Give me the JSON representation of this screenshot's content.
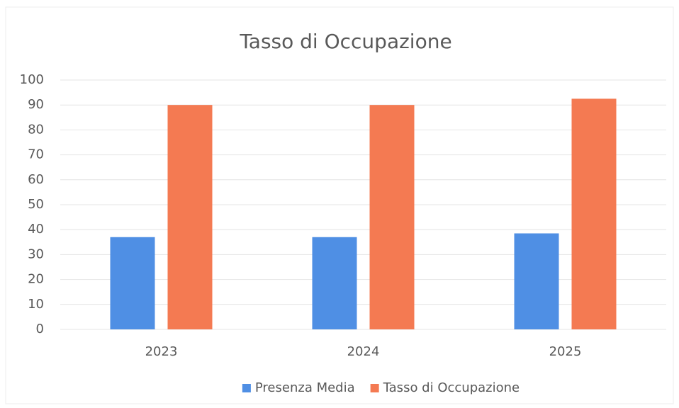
{
  "chart_data": {
    "type": "bar",
    "title": "Tasso di Occupazione",
    "categories": [
      "2023",
      "2024",
      "2025"
    ],
    "series": [
      {
        "name": "Presenza Media",
        "color": "#4f8fe4",
        "values": [
          37,
          37,
          38.5
        ]
      },
      {
        "name": "Tasso di Occupazione",
        "color": "#f47a52",
        "values": [
          90,
          90,
          92.5
        ]
      }
    ],
    "ylim": [
      0,
      100
    ],
    "yticks": [
      0,
      10,
      20,
      30,
      40,
      50,
      60,
      70,
      80,
      90,
      100
    ],
    "grid": true,
    "legend": "bottom"
  }
}
